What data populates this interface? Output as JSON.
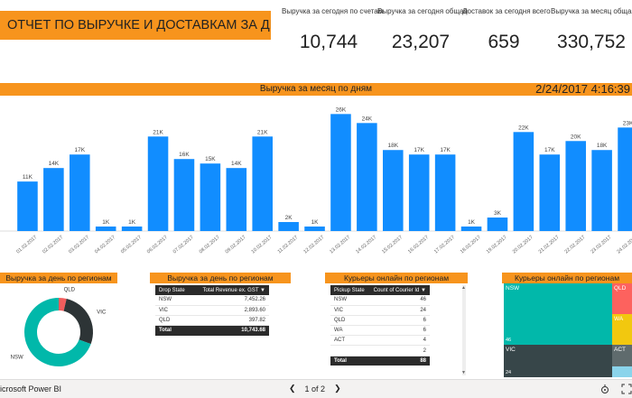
{
  "header": {
    "title": "ОТЧЕТ ПО ВЫРУЧКЕ И ДОСТАВКАМ ЗА ДЕНЬ",
    "kpis": [
      {
        "label": "Выручка за сегодня по счетам",
        "value": "10,744"
      },
      {
        "label": "Выручка за сегодня общая",
        "value": "23,207"
      },
      {
        "label": "Доставок за сегодня всего",
        "value": "659"
      },
      {
        "label": "Выручка за месяц общая",
        "value": "330,752"
      }
    ]
  },
  "monthly": {
    "title": "Выручка за месяц по дням",
    "datetime": "2/24/2017 4:16:39"
  },
  "chart_data": {
    "type": "bar",
    "title": "Выручка за месяц по дням",
    "categories": [
      "01.02.2017",
      "02.02.2017",
      "03.02.2017",
      "04.02.2017",
      "05.02.2017",
      "06.02.2017",
      "07.02.2017",
      "08.02.2017",
      "09.02.2017",
      "10.02.2017",
      "11.02.2017",
      "12.02.2017",
      "13.02.2017",
      "14.02.2017",
      "15.02.2017",
      "16.02.2017",
      "17.02.2017",
      "18.02.2017",
      "19.02.2017",
      "20.02.2017",
      "21.02.2017",
      "22.02.2017",
      "23.02.2017",
      "24.02.2017"
    ],
    "values": [
      11,
      14,
      17,
      1,
      1,
      21,
      16,
      15,
      14,
      21,
      2,
      1,
      26,
      24,
      18,
      17,
      17,
      1,
      3,
      22,
      17,
      20,
      18,
      23
    ],
    "data_labels": [
      "11K",
      "14K",
      "17K",
      "1K",
      "1K",
      "21K",
      "16K",
      "15K",
      "14K",
      "21K",
      "2K",
      "1K",
      "26K",
      "24K",
      "18K",
      "17K",
      "17K",
      "1K",
      "3K",
      "22K",
      "17K",
      "20K",
      "18K",
      "23K"
    ],
    "ylim": [
      0,
      30
    ],
    "color": "#118dff",
    "grid": false
  },
  "region_donut": {
    "title": "Выручка за день по регионам",
    "labels": [
      "QLD",
      "VIC",
      "NSW"
    ],
    "values": [
      397.82,
      2893.6,
      7452.26
    ],
    "colors": [
      "#f25c5c",
      "#2d3436",
      "#01b8aa"
    ]
  },
  "region_table": {
    "title": "Выручка за день по регионам",
    "columns": [
      "Drop State",
      "Total Revenue ex. GST"
    ],
    "rows": [
      [
        "NSW",
        "7,452.26"
      ],
      [
        "VIC",
        "2,893.60"
      ],
      [
        "QLD",
        "397.82"
      ]
    ],
    "total": [
      "Total",
      "10,743.68"
    ]
  },
  "couriers_table": {
    "title": "Курьеры онлайн по регионам",
    "columns": [
      "Pickup State",
      "Count of Courier Id"
    ],
    "rows": [
      [
        "NSW",
        "46"
      ],
      [
        "VIC",
        "24"
      ],
      [
        "QLD",
        "6"
      ],
      [
        "WA",
        "6"
      ],
      [
        "ACT",
        "4"
      ],
      [
        "",
        "2"
      ]
    ],
    "total": [
      "Total",
      "88"
    ]
  },
  "couriers_treemap": {
    "title": "Курьеры онлайн по регионам",
    "cells": [
      {
        "label": "NSW",
        "value": "46",
        "color": "#01b8aa"
      },
      {
        "label": "VIC",
        "value": "24",
        "color": "#374649"
      },
      {
        "label": "QLD",
        "value": "",
        "color": "#fd625e"
      },
      {
        "label": "WA",
        "value": "",
        "color": "#f2c80f"
      },
      {
        "label": "ACT",
        "value": "",
        "color": "#5f6b6d"
      },
      {
        "label": "",
        "value": "",
        "color": "#8ad4eb"
      }
    ]
  },
  "footer": {
    "brand": "icrosoft Power BI",
    "page_indicator": "1 of 2",
    "prev": "❮",
    "next": "❯"
  }
}
